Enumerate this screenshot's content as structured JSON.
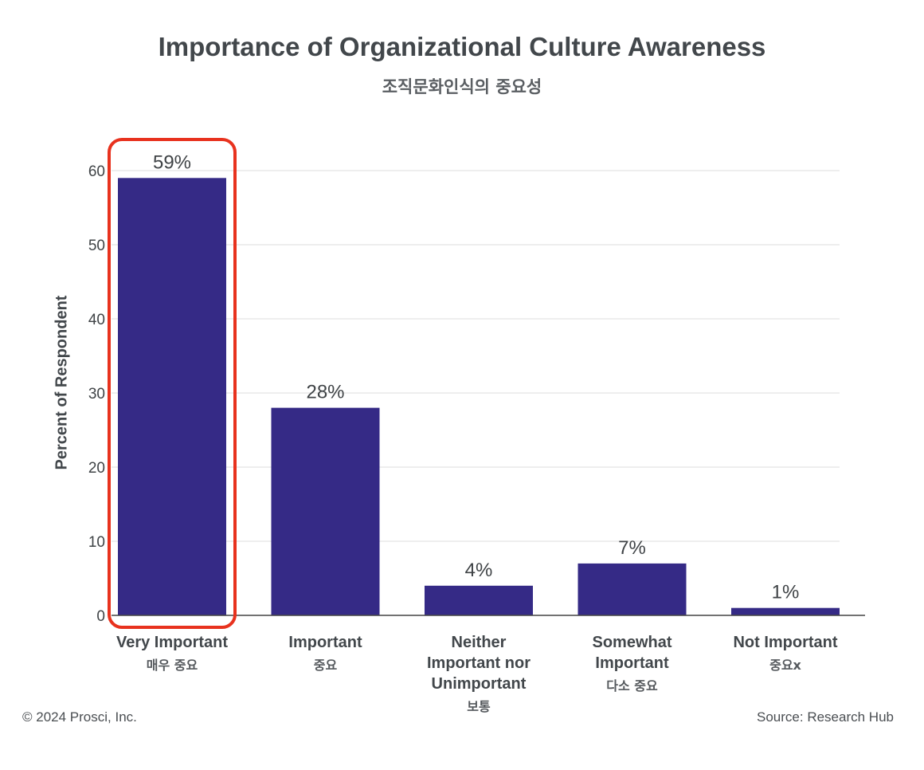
{
  "chart_data": {
    "type": "bar",
    "title": "Importance of Organizational Culture Awareness",
    "subtitle": "조직문화인식의 중요성",
    "ylabel": "Percent of Respondent",
    "xlabel": "",
    "ylim": [
      0,
      60
    ],
    "yticks": [
      "0",
      "10",
      "20",
      "30",
      "40",
      "50",
      "60"
    ],
    "grid": true,
    "categories": [
      {
        "lines": [
          "Very Important"
        ],
        "sub": "매우 중요"
      },
      {
        "lines": [
          "Important"
        ],
        "sub": "중요"
      },
      {
        "lines": [
          "Neither",
          "Important nor",
          "Unimportant"
        ],
        "sub": "보통"
      },
      {
        "lines": [
          "Somewhat",
          "Important"
        ],
        "sub": "다소 중요"
      },
      {
        "lines": [
          "Not Important"
        ],
        "sub": "중요x"
      }
    ],
    "values": [
      59,
      28,
      4,
      7,
      1
    ],
    "value_labels": [
      "59%",
      "28%",
      "4%",
      "7%",
      "1%"
    ],
    "highlighted_category_index": 0,
    "colors": {
      "bar": "#352a86",
      "highlight": "#e8321e",
      "grid": "#dcdcdc",
      "axis": "#444444"
    }
  },
  "footer": {
    "copyright": "© 2024 Prosci, Inc.",
    "source": "Source: Research Hub"
  }
}
